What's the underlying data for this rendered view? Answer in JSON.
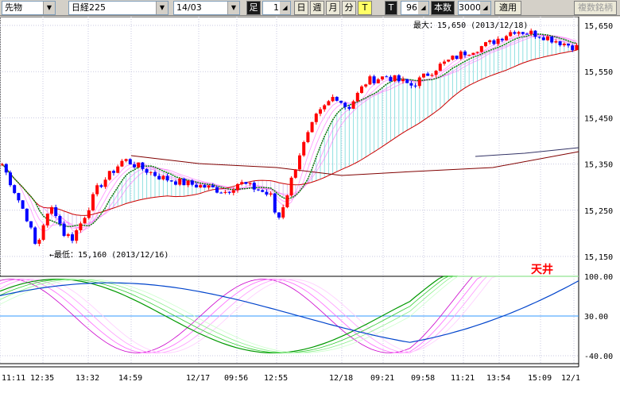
{
  "toolbar": {
    "category_select": "先物",
    "instrument_select": "日経225",
    "contract_select": "14/03",
    "period_label": "足",
    "period_value": "1",
    "btn_day": "日",
    "btn_week": "週",
    "btn_month": "月",
    "btn_minute": "分",
    "btn_tick": "T",
    "tick_label": "T",
    "count_value": "96",
    "count_label": "本数",
    "lot_value": "3000",
    "apply_label": "適用",
    "multi_label": "複数銘柄"
  },
  "chart": {
    "max_label": "最大：15,650 (2013/12/18)",
    "min_label": "←最低：15,160 (2013/12/16)",
    "ceiling_label": "天井",
    "price_ticks": [
      "15,650",
      "15,550",
      "15,450",
      "15,350",
      "15,250",
      "15,150"
    ],
    "osc_ticks": [
      "100.00",
      "30.00",
      "-40.00"
    ],
    "time_ticks": [
      "11:11",
      "12:35",
      "13:32",
      "14:59",
      "12/17",
      "09:56",
      "12:55",
      "12/18",
      "09:21",
      "09:58",
      "11:21",
      "13:54",
      "15:09",
      "12/1"
    ],
    "colors": {
      "up": "#ff0000",
      "down": "#0000ff",
      "ma_short": "#008800",
      "ma_long": "#cc0000",
      "ribbon": "#ff66ff",
      "cloud_up": "#8ee0e0",
      "cloud_dn": "#d8c8f0"
    }
  }
}
